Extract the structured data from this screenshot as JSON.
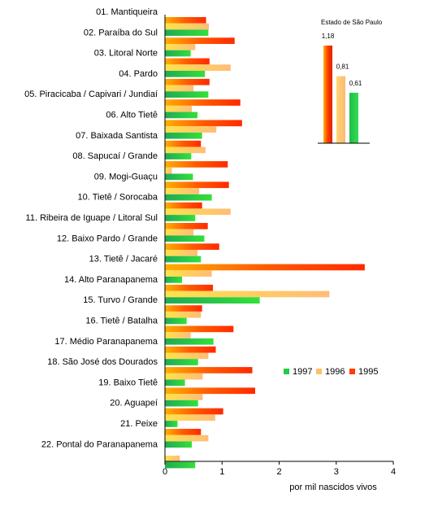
{
  "chart_data": [
    {
      "type": "bar",
      "orientation": "horizontal",
      "categories": [
        "01. Mantiqueira",
        "02. Paraíba do Sul",
        "03. Litoral Norte",
        "04. Pardo",
        "05. Piracicaba / Capivari / Jundiaí",
        "06. Alto Tietê",
        "07. Baixada Santista",
        "08. Sapucaí / Grande",
        "09. Mogi-Guaçu",
        "10. Tietê / Sorocaba",
        "11. Ribeira de Iguape / Litoral Sul",
        "12. Baixo Pardo / Grande",
        "13. Tietê / Jacaré",
        "14. Alto Paranapanema",
        "15. Turvo / Grande",
        "16. Tietê / Batalha",
        "17. Médio Paranapanema",
        "18. São José dos Dourados",
        "19. Baixo Tietê",
        "20. Aguapeí",
        "21. Peixe",
        "22. Pontal do Paranapanema"
      ],
      "series": [
        {
          "name": "1995",
          "color": "#ff3d00",
          "values": [
            0.72,
            1.22,
            0.78,
            0.78,
            1.32,
            1.35,
            0.63,
            1.1,
            1.12,
            0.65,
            0.75,
            0.95,
            3.5,
            0.84,
            0.65,
            1.2,
            0.89,
            1.53,
            1.58,
            1.02,
            0.63,
            0.0
          ]
        },
        {
          "name": "1996",
          "color": "#ffc06a",
          "values": [
            0.77,
            0.53,
            1.15,
            0.5,
            0.47,
            0.9,
            0.71,
            0.12,
            0.6,
            1.15,
            0.5,
            0.57,
            0.82,
            2.88,
            0.63,
            0.45,
            0.76,
            0.66,
            0.66,
            0.88,
            0.76,
            0.26
          ]
        },
        {
          "name": "1997",
          "color": "#22cc44",
          "values": [
            0.76,
            0.45,
            0.7,
            0.76,
            0.57,
            0.65,
            0.46,
            0.49,
            0.82,
            0.53,
            0.69,
            0.63,
            0.3,
            1.66,
            0.38,
            0.85,
            0.58,
            0.35,
            0.58,
            0.22,
            0.47,
            0.53
          ]
        }
      ],
      "xlabel": "por mil nascidos vivos",
      "xlim": [
        0,
        4
      ],
      "xticks": [
        "0",
        "1",
        "2",
        "3",
        "4"
      ],
      "legend": {
        "placement": "right",
        "entries": [
          "1997",
          "1996",
          "1995"
        ]
      },
      "grid": false
    },
    {
      "type": "bar",
      "title": "Estado de São Paulo",
      "categories": [
        "1995",
        "1996",
        "1997"
      ],
      "values": [
        1.18,
        0.81,
        0.61
      ],
      "data_labels": [
        "1,18",
        "0,81",
        "0,61"
      ],
      "colors": [
        "#ff3d00",
        "#ffc06a",
        "#22cc44"
      ]
    }
  ]
}
